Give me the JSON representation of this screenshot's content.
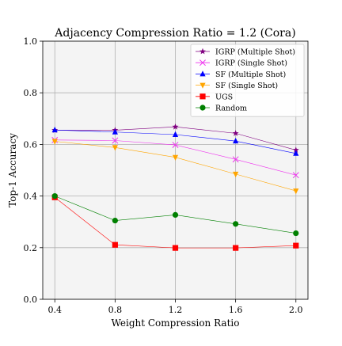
{
  "chart_data": {
    "type": "line",
    "title": "Adjacency Compression Ratio = 1.2 (Cora)",
    "xlabel": "Weight Compression Ratio",
    "ylabel": "Top-1 Accuracy",
    "x": [
      0.4,
      0.8,
      1.2,
      1.6,
      2.0
    ],
    "x_tick_labels": [
      "0.4",
      "0.8",
      "1.2",
      "1.6",
      "2.0"
    ],
    "xlim": [
      0.32,
      2.08
    ],
    "ylim": [
      0.0,
      1.0
    ],
    "y_ticks": [
      0.0,
      0.2,
      0.4,
      0.6,
      0.8,
      1.0
    ],
    "y_tick_labels": [
      "0.0",
      "0.2",
      "0.4",
      "0.6",
      "0.8",
      "1.0"
    ],
    "grid": true,
    "legend_position": "top-right",
    "series": [
      {
        "name": "IGRP (Multiple Shot)",
        "color": "#800080",
        "marker": "star",
        "values": [
          0.655,
          0.655,
          0.668,
          0.643,
          0.578
        ]
      },
      {
        "name": "IGRP (Single Shot)",
        "color": "#ee33ee",
        "marker": "x",
        "values": [
          0.617,
          0.615,
          0.598,
          0.542,
          0.481
        ]
      },
      {
        "name": "SF (Multiple Shot)",
        "color": "#0000ff",
        "marker": "triangle-up",
        "values": [
          0.656,
          0.648,
          0.638,
          0.613,
          0.565
        ]
      },
      {
        "name": "SF (Single Shot)",
        "color": "#ffa500",
        "marker": "triangle-down",
        "values": [
          0.612,
          0.588,
          0.55,
          0.485,
          0.42
        ]
      },
      {
        "name": "UGS",
        "color": "#ff0000",
        "marker": "square",
        "values": [
          0.395,
          0.211,
          0.199,
          0.199,
          0.208
        ]
      },
      {
        "name": "Random",
        "color": "#008000",
        "marker": "circle",
        "values": [
          0.4,
          0.305,
          0.327,
          0.292,
          0.256
        ]
      }
    ]
  }
}
